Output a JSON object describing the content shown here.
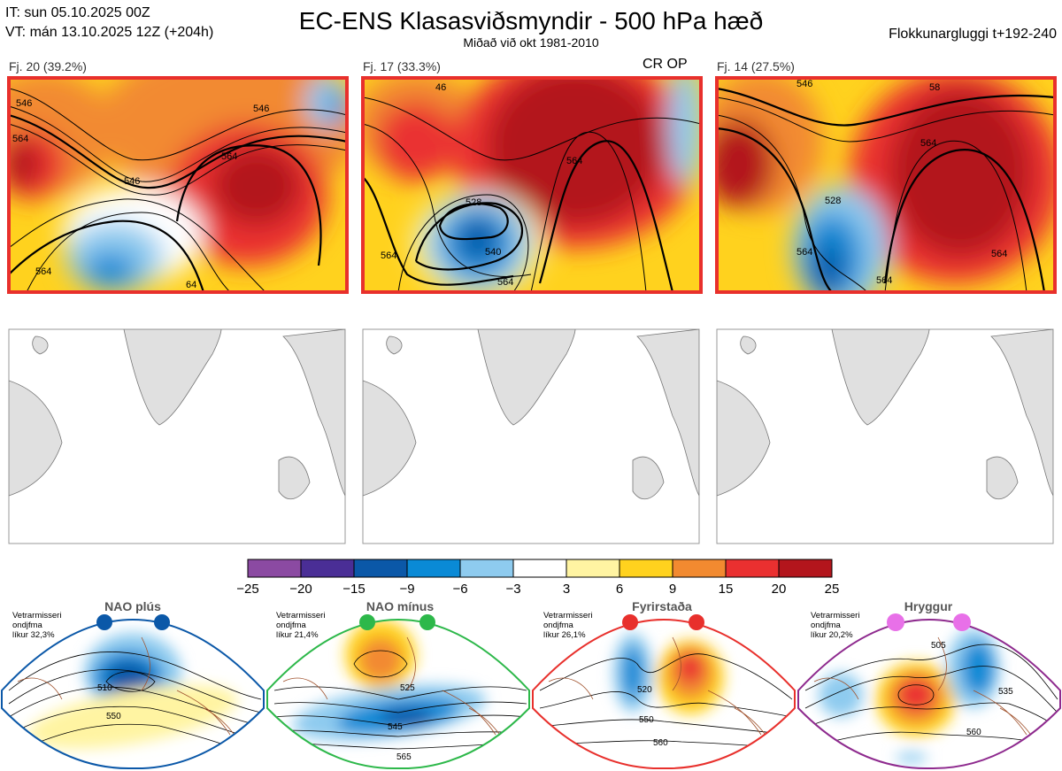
{
  "header": {
    "it_line": "IT: sun 05.10.2025 00Z",
    "vt_line": "VT: mán 13.10.2025 12Z  (+204h)",
    "title": "EC-ENS Klasasviðsmyndir - 500 hPa hæð",
    "subtitle": "Miðað við okt 1981-2010",
    "window": "Flokkunargluggi t+192-240"
  },
  "clusters": [
    {
      "label": "Fj. 20 (39.2%)",
      "contours": [
        "546",
        "564",
        "546",
        "564",
        "546",
        "564",
        "64"
      ]
    },
    {
      "label": "Fj. 17 (33.3%)",
      "contours": [
        "528",
        "540",
        "564",
        "564",
        "564",
        "46"
      ]
    },
    {
      "label": "Fj. 14 (27.5%)",
      "contours": [
        "546",
        "528",
        "564",
        "564",
        "564",
        "564",
        "58"
      ]
    }
  ],
  "op_label": "CR OP",
  "colorbar": {
    "ticks": [
      "−25",
      "−20",
      "−15",
      "−9",
      "−6",
      "−3",
      "3",
      "6",
      "9",
      "15",
      "20",
      "25"
    ],
    "colors": [
      "#8b4aa2",
      "#4a2e96",
      "#0b58a8",
      "#0a8ad6",
      "#8ecbef",
      "#ffffff",
      "#fff4a2",
      "#ffd21e",
      "#f28a30",
      "#ea3030",
      "#b3151c"
    ]
  },
  "regimes": [
    {
      "name": "NAO plús",
      "caption": [
        "Vetrarmisseri",
        "ondjfma",
        "líkur 32,3%"
      ],
      "color": "#0b58a8",
      "contours": [
        "510",
        "550"
      ]
    },
    {
      "name": "NAO mínus",
      "caption": [
        "Vetrarmisseri",
        "ondjfma",
        "líkur 21,4%"
      ],
      "color": "#2db84a",
      "contours": [
        "525",
        "545",
        "565"
      ]
    },
    {
      "name": "Fyrirstaða",
      "caption": [
        "Vetrarmisseri",
        "ondjfma",
        "líkur 26,1%"
      ],
      "color": "#e8302c",
      "contours": [
        "520",
        "550",
        "560"
      ]
    },
    {
      "name": "Hryggur",
      "caption": [
        "Vetrarmisseri",
        "ondjfma",
        "líkur 20,2%"
      ],
      "color": "#e870e8",
      "contours": [
        "505",
        "535",
        "560"
      ]
    }
  ]
}
